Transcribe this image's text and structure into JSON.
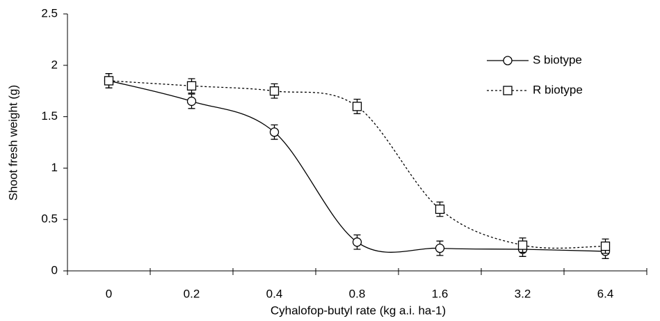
{
  "chart_data": {
    "type": "line",
    "x_label": "Cyhalofop-butyl rate (kg a.i. ha-1)",
    "y_label": "Shoot fresh weight (g)",
    "categories": [
      "0",
      "0.2",
      "0.4",
      "0.8",
      "1.6",
      "3.2",
      "6.4"
    ],
    "ylim": [
      0,
      2.5
    ],
    "yticks": [
      0,
      0.5,
      1,
      1.5,
      2,
      2.5
    ],
    "legend": "upper right",
    "smooth": true,
    "series": [
      {
        "name": "S biotype",
        "color": "#000000",
        "line_style": "solid",
        "marker": "circle",
        "values": [
          1.85,
          1.65,
          1.35,
          0.28,
          0.22,
          0.21,
          0.19
        ],
        "errors": [
          0.07,
          0.07,
          0.07,
          0.07,
          0.07,
          0.07,
          0.07
        ]
      },
      {
        "name": "R biotype",
        "color": "#000000",
        "line_style": "dotted",
        "marker": "square",
        "values": [
          1.85,
          1.8,
          1.75,
          1.6,
          0.6,
          0.25,
          0.24
        ],
        "errors": [
          0.07,
          0.07,
          0.07,
          0.07,
          0.07,
          0.07,
          0.07
        ]
      }
    ]
  }
}
